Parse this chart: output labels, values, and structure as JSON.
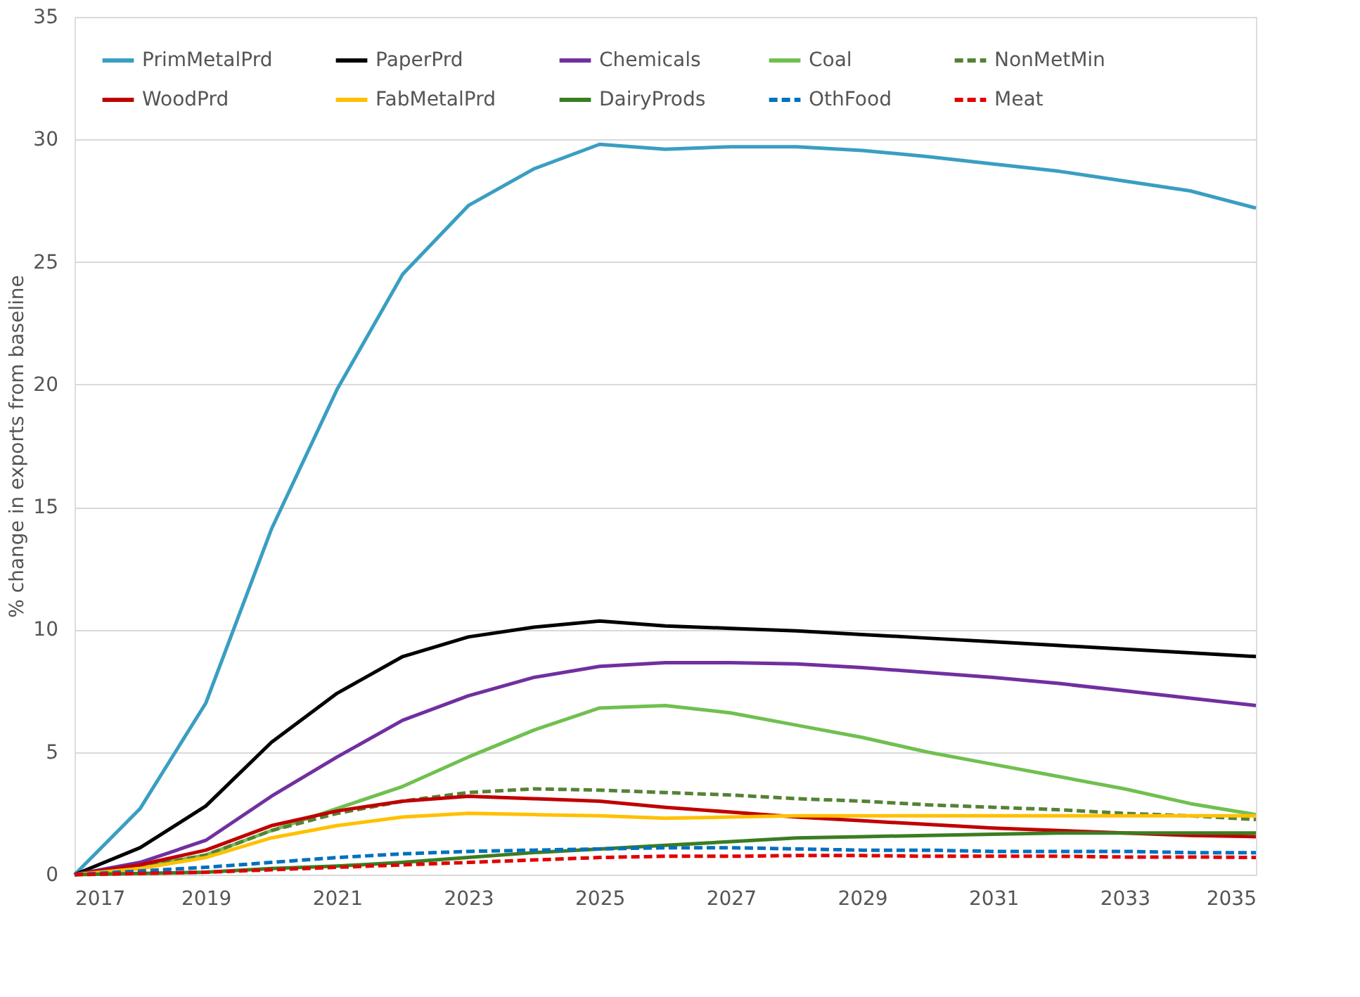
{
  "chart_data": {
    "type": "line",
    "ylabel": "% change in exports from baseline",
    "x": [
      2017,
      2018,
      2019,
      2020,
      2021,
      2022,
      2023,
      2024,
      2025,
      2026,
      2027,
      2028,
      2029,
      2030,
      2031,
      2032,
      2033,
      2034,
      2035
    ],
    "xlim": [
      2017,
      2035
    ],
    "xticks": [
      2017,
      2019,
      2021,
      2023,
      2025,
      2027,
      2029,
      2031,
      2033,
      2035
    ],
    "ylim": [
      0,
      35
    ],
    "yticks": [
      0,
      5,
      10,
      15,
      20,
      25,
      30,
      35
    ],
    "grid": "y",
    "legend": "top left",
    "marker": "none",
    "series": [
      {
        "name": "PrimMetalPrd",
        "color": "#3a9ec2",
        "line_style": "solid",
        "values": [
          0,
          2.7,
          7.0,
          14.1,
          19.8,
          24.5,
          27.3,
          28.8,
          29.8,
          29.6,
          29.7,
          29.7,
          29.55,
          29.3,
          29.0,
          28.7,
          28.3,
          27.9,
          27.2
        ]
      },
      {
        "name": "PaperPrd",
        "color": "#000000",
        "line_style": "solid",
        "values": [
          0,
          1.1,
          2.8,
          5.4,
          7.4,
          8.9,
          9.7,
          10.1,
          10.35,
          10.15,
          10.05,
          9.95,
          9.8,
          9.65,
          9.5,
          9.35,
          9.2,
          9.05,
          8.9
        ]
      },
      {
        "name": "Chemicals",
        "color": "#7030a0",
        "line_style": "solid",
        "values": [
          0,
          0.5,
          1.4,
          3.2,
          4.8,
          6.3,
          7.3,
          8.05,
          8.5,
          8.65,
          8.65,
          8.6,
          8.45,
          8.25,
          8.05,
          7.8,
          7.5,
          7.2,
          6.9
        ]
      },
      {
        "name": "Coal",
        "color": "#70c050",
        "line_style": "solid",
        "values": [
          0,
          0.3,
          0.8,
          1.8,
          2.7,
          3.6,
          4.8,
          5.9,
          6.8,
          6.9,
          6.6,
          6.1,
          5.6,
          5.0,
          4.5,
          4.0,
          3.5,
          2.9,
          2.45
        ]
      },
      {
        "name": "NonMetMin",
        "color": "#548235",
        "line_style": "dashed",
        "values": [
          0,
          0.3,
          0.8,
          1.8,
          2.5,
          3.0,
          3.35,
          3.5,
          3.45,
          3.35,
          3.25,
          3.1,
          3.0,
          2.85,
          2.75,
          2.65,
          2.5,
          2.4,
          2.25
        ]
      },
      {
        "name": "WoodPrd",
        "color": "#c00000",
        "line_style": "solid",
        "values": [
          0,
          0.4,
          1.0,
          2.0,
          2.6,
          3.0,
          3.2,
          3.1,
          3.0,
          2.75,
          2.55,
          2.35,
          2.2,
          2.05,
          1.9,
          1.8,
          1.7,
          1.6,
          1.55
        ]
      },
      {
        "name": "FabMetalPrd",
        "color": "#ffc000",
        "line_style": "solid",
        "values": [
          0,
          0.25,
          0.7,
          1.5,
          2.0,
          2.35,
          2.5,
          2.45,
          2.4,
          2.3,
          2.35,
          2.4,
          2.4,
          2.4,
          2.4,
          2.4,
          2.4,
          2.4,
          2.4
        ]
      },
      {
        "name": "DairyProds",
        "color": "#3a7d22",
        "line_style": "solid",
        "values": [
          0,
          0.05,
          0.1,
          0.25,
          0.35,
          0.5,
          0.7,
          0.9,
          1.05,
          1.2,
          1.35,
          1.5,
          1.55,
          1.6,
          1.65,
          1.7,
          1.7,
          1.7,
          1.7
        ]
      },
      {
        "name": "OthFood",
        "color": "#0070c0",
        "line_style": "dashed",
        "values": [
          0,
          0.15,
          0.3,
          0.5,
          0.7,
          0.85,
          0.95,
          1.0,
          1.05,
          1.1,
          1.1,
          1.05,
          1.0,
          1.0,
          0.95,
          0.95,
          0.95,
          0.9,
          0.9
        ]
      },
      {
        "name": "Meat",
        "color": "#e00000",
        "line_style": "dashed",
        "values": [
          0,
          0.05,
          0.1,
          0.2,
          0.3,
          0.4,
          0.5,
          0.6,
          0.7,
          0.75,
          0.75,
          0.78,
          0.78,
          0.75,
          0.75,
          0.75,
          0.72,
          0.72,
          0.7
        ]
      }
    ]
  }
}
